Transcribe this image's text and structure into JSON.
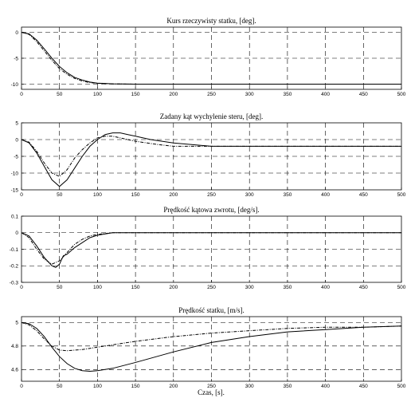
{
  "xlabel": "Czas, [s].",
  "chart_data": [
    {
      "type": "line",
      "title": "Kurs rzeczywisty statku, [deg].",
      "xlim": [
        0,
        500
      ],
      "ylim": [
        -11,
        1
      ],
      "xticks": [
        0,
        50,
        100,
        150,
        200,
        250,
        300,
        350,
        400,
        450,
        500
      ],
      "yticks": [
        0,
        -5,
        -10
      ],
      "grid": true,
      "series": [
        {
          "style": "solid",
          "x": [
            0,
            10,
            20,
            30,
            40,
            50,
            60,
            70,
            80,
            90,
            100,
            120,
            150,
            200,
            300,
            400,
            500
          ],
          "values": [
            0,
            -0.3,
            -1.5,
            -3.2,
            -5.0,
            -6.6,
            -7.8,
            -8.7,
            -9.2,
            -9.6,
            -9.8,
            -9.95,
            -10.0,
            -10.0,
            -10.0,
            -10.0,
            -10.0
          ]
        },
        {
          "style": "dashdot",
          "x": [
            0,
            10,
            20,
            30,
            40,
            50,
            60,
            70,
            80,
            90,
            100,
            120,
            150,
            200,
            300,
            400,
            500
          ],
          "values": [
            0,
            -0.4,
            -1.8,
            -3.6,
            -5.4,
            -7.0,
            -8.1,
            -8.9,
            -9.4,
            -9.7,
            -9.85,
            -9.95,
            -10.0,
            -10.0,
            -10.0,
            -10.0,
            -10.0
          ]
        }
      ]
    },
    {
      "type": "line",
      "title": "Zadany kąt wychylenie steru, [deg].",
      "xlim": [
        0,
        500
      ],
      "ylim": [
        -15,
        5
      ],
      "xticks": [
        0,
        50,
        100,
        150,
        200,
        250,
        300,
        350,
        400,
        450,
        500
      ],
      "yticks": [
        5,
        0,
        -5,
        -10,
        -15
      ],
      "grid": true,
      "series": [
        {
          "style": "solid",
          "x": [
            0,
            10,
            20,
            30,
            40,
            50,
            60,
            70,
            80,
            90,
            100,
            110,
            120,
            130,
            140,
            150,
            170,
            200,
            250,
            300,
            400,
            500
          ],
          "values": [
            0,
            -1.0,
            -4.0,
            -8.0,
            -12.0,
            -14.0,
            -12.0,
            -8.5,
            -5.0,
            -2.0,
            0.0,
            1.5,
            2.0,
            2.0,
            1.5,
            1.0,
            0.0,
            -1.0,
            -2.0,
            -2.0,
            -2.0,
            -2.0
          ]
        },
        {
          "style": "dashdot",
          "x": [
            0,
            10,
            20,
            30,
            40,
            50,
            60,
            70,
            80,
            90,
            100,
            110,
            120,
            130,
            150,
            180,
            200,
            250,
            300,
            400,
            500
          ],
          "values": [
            0,
            -0.8,
            -3.5,
            -7.0,
            -10.0,
            -11.0,
            -9.0,
            -5.5,
            -3.0,
            -1.0,
            0.5,
            1.0,
            1.0,
            0.5,
            -0.5,
            -1.5,
            -2.0,
            -2.0,
            -2.0,
            -2.0,
            -2.0
          ]
        }
      ]
    },
    {
      "type": "line",
      "title": "Prędkość kątowa zwrotu, [deg/s].",
      "xlim": [
        0,
        500
      ],
      "ylim": [
        -0.3,
        0.1
      ],
      "xticks": [
        0,
        50,
        100,
        150,
        200,
        250,
        300,
        350,
        400,
        450,
        500
      ],
      "yticks": [
        0.1,
        0,
        -0.1,
        -0.2,
        -0.3
      ],
      "grid": true,
      "series": [
        {
          "style": "solid",
          "x": [
            0,
            10,
            20,
            30,
            40,
            45,
            50,
            55,
            60,
            70,
            80,
            90,
            100,
            120,
            150,
            200,
            300,
            500
          ],
          "values": [
            0,
            -0.02,
            -0.08,
            -0.15,
            -0.2,
            -0.21,
            -0.19,
            -0.14,
            -0.13,
            -0.09,
            -0.06,
            -0.03,
            -0.015,
            0.0,
            0.0,
            0.0,
            0.0,
            0.0
          ]
        },
        {
          "style": "dashdot",
          "x": [
            0,
            10,
            20,
            30,
            40,
            50,
            60,
            70,
            80,
            90,
            100,
            120,
            150,
            200,
            300,
            500
          ],
          "values": [
            0,
            -0.03,
            -0.1,
            -0.16,
            -0.19,
            -0.17,
            -0.12,
            -0.07,
            -0.04,
            -0.02,
            -0.01,
            0.0,
            0.0,
            0.0,
            0.0,
            0.0
          ]
        }
      ]
    },
    {
      "type": "line",
      "title": "Prędkość statku, [m/s].",
      "xlim": [
        0,
        500
      ],
      "ylim": [
        4.5,
        5.05
      ],
      "xticks": [
        0,
        50,
        100,
        150,
        200,
        250,
        300,
        350,
        400,
        450,
        500
      ],
      "yticks": [
        5,
        4.8,
        4.6
      ],
      "grid": true,
      "series": [
        {
          "style": "solid",
          "x": [
            0,
            10,
            20,
            30,
            40,
            50,
            60,
            70,
            80,
            90,
            100,
            120,
            150,
            200,
            250,
            300,
            350,
            400,
            450,
            500
          ],
          "values": [
            5.0,
            4.99,
            4.95,
            4.88,
            4.79,
            4.71,
            4.65,
            4.61,
            4.59,
            4.585,
            4.59,
            4.61,
            4.66,
            4.75,
            4.83,
            4.88,
            4.92,
            4.94,
            4.96,
            4.97
          ]
        },
        {
          "style": "dashdot",
          "x": [
            0,
            10,
            20,
            30,
            40,
            50,
            60,
            70,
            80,
            100,
            120,
            150,
            200,
            250,
            300,
            350,
            400,
            450,
            500
          ],
          "values": [
            5.0,
            4.98,
            4.93,
            4.86,
            4.8,
            4.765,
            4.76,
            4.765,
            4.77,
            4.79,
            4.81,
            4.84,
            4.88,
            4.91,
            4.93,
            4.95,
            4.96,
            4.96,
            4.97
          ]
        }
      ]
    }
  ]
}
